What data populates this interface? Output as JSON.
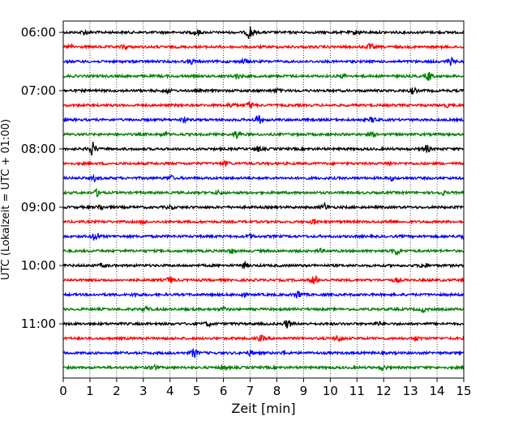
{
  "chart_data": {
    "type": "line",
    "title": "",
    "xlabel": "Zeit  [min]",
    "ylabel": "UTC (Lokalzeit = UTC + 01:00)",
    "xlim": [
      0,
      15
    ],
    "x_ticks": [
      "0",
      "1",
      "2",
      "3",
      "4",
      "5",
      "6",
      "7",
      "8",
      "9",
      "10",
      "11",
      "12",
      "13",
      "14",
      "15"
    ],
    "y_ticks": [
      "06:00",
      "07:00",
      "08:00",
      "09:00",
      "10:00",
      "11:00"
    ],
    "grid": "vertical dotted lines at each minute",
    "trace_interval_min": 15,
    "trace_colors": [
      "#000000",
      "#ff0000",
      "#0000ff",
      "#008000"
    ],
    "traces": [
      {
        "start": "06:00",
        "events": [
          [
            7.0,
            2.6
          ],
          [
            5.0,
            0.9
          ],
          [
            0.8,
            0.8
          ],
          [
            11.0,
            0.7
          ]
        ]
      },
      {
        "start": "06:15",
        "events": [
          [
            2.3,
            0.8
          ],
          [
            11.5,
            1.0
          ],
          [
            0.3,
            0.6
          ]
        ]
      },
      {
        "start": "06:30",
        "events": [
          [
            14.5,
            1.2
          ],
          [
            6.8,
            0.8
          ],
          [
            4.8,
            0.7
          ]
        ]
      },
      {
        "start": "06:45",
        "events": [
          [
            13.7,
            1.5
          ],
          [
            6.5,
            0.8
          ],
          [
            10.5,
            0.6
          ]
        ]
      },
      {
        "start": "07:00",
        "events": [
          [
            13.1,
            1.0
          ],
          [
            3.9,
            0.6
          ],
          [
            8.0,
            0.6
          ]
        ]
      },
      {
        "start": "07:15",
        "events": [
          [
            7.0,
            1.2
          ],
          [
            6.3,
            0.8
          ],
          [
            14.4,
            0.5
          ]
        ]
      },
      {
        "start": "07:30",
        "events": [
          [
            7.3,
            1.5
          ],
          [
            4.5,
            0.9
          ],
          [
            11.6,
            0.8
          ]
        ]
      },
      {
        "start": "07:45",
        "events": [
          [
            6.5,
            1.4
          ],
          [
            3.8,
            0.7
          ],
          [
            11.6,
            0.6
          ]
        ]
      },
      {
        "start": "08:00",
        "events": [
          [
            1.1,
            2.4
          ],
          [
            13.6,
            1.3
          ],
          [
            7.3,
            0.8
          ]
        ]
      },
      {
        "start": "08:15",
        "events": [
          [
            6.1,
            0.7
          ],
          [
            12.2,
            0.6
          ]
        ]
      },
      {
        "start": "08:30",
        "events": [
          [
            1.2,
            0.9
          ],
          [
            4.0,
            0.9
          ],
          [
            12.3,
            0.6
          ]
        ]
      },
      {
        "start": "08:45",
        "events": [
          [
            1.3,
            1.3
          ],
          [
            5.8,
            0.6
          ],
          [
            14.2,
            0.6
          ]
        ]
      },
      {
        "start": "09:00",
        "events": [
          [
            9.8,
            1.2
          ],
          [
            1.4,
            0.9
          ],
          [
            4.0,
            0.6
          ]
        ]
      },
      {
        "start": "09:15",
        "events": [
          [
            9.4,
            0.8
          ],
          [
            3.0,
            0.6
          ],
          [
            12.3,
            0.5
          ]
        ]
      },
      {
        "start": "09:30",
        "events": [
          [
            1.2,
            1.7
          ],
          [
            7.0,
            0.6
          ],
          [
            15.0,
            0.8
          ]
        ]
      },
      {
        "start": "09:45",
        "events": [
          [
            12.5,
            1.4
          ],
          [
            6.3,
            0.8
          ],
          [
            9.6,
            0.7
          ]
        ]
      },
      {
        "start": "10:00",
        "events": [
          [
            13.5,
            1.1
          ],
          [
            6.8,
            0.9
          ],
          [
            1.5,
            0.6
          ]
        ]
      },
      {
        "start": "10:15",
        "events": [
          [
            9.4,
            1.6
          ],
          [
            4.0,
            1.1
          ],
          [
            12.5,
            0.7
          ]
        ]
      },
      {
        "start": "10:30",
        "events": [
          [
            8.8,
            1.4
          ],
          [
            6.7,
            0.8
          ],
          [
            2.7,
            0.6
          ]
        ]
      },
      {
        "start": "10:45",
        "events": [
          [
            3.1,
            0.8
          ],
          [
            13.5,
            0.8
          ],
          [
            6.0,
            0.6
          ]
        ]
      },
      {
        "start": "11:00",
        "events": [
          [
            8.4,
            1.4
          ],
          [
            5.4,
            0.7
          ],
          [
            11.8,
            0.6
          ]
        ]
      },
      {
        "start": "11:15",
        "events": [
          [
            10.3,
            1.1
          ],
          [
            7.4,
            0.9
          ],
          [
            13.2,
            0.7
          ]
        ]
      },
      {
        "start": "11:30",
        "events": [
          [
            4.9,
            1.5
          ],
          [
            7.0,
            0.8
          ],
          [
            8.3,
            0.6
          ]
        ]
      },
      {
        "start": "11:45",
        "events": [
          [
            3.4,
            0.9
          ],
          [
            12.0,
            0.7
          ],
          [
            6.0,
            0.6
          ]
        ]
      }
    ]
  }
}
